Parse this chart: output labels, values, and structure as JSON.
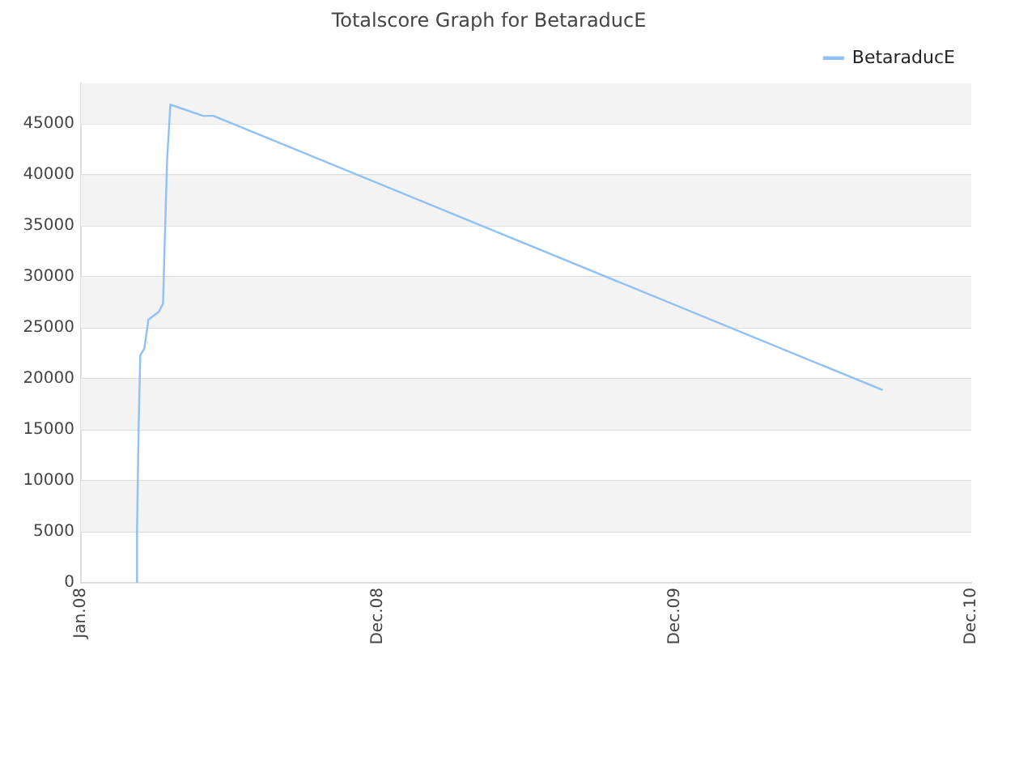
{
  "chart_data": {
    "type": "line",
    "title": "Totalscore Graph for BetaraducE",
    "x": [
      "2008-03-10",
      "2008-03-10",
      "2008-03-12",
      "2008-03-14",
      "2008-03-19",
      "2008-03-24",
      "2008-04-06",
      "2008-04-11",
      "2008-04-13",
      "2008-04-16",
      "2008-04-20",
      "2008-05-30",
      "2008-06-12",
      "2010-09-13"
    ],
    "series": [
      {
        "name": "BetaraducE",
        "color": "#90c0f4",
        "values": [
          0,
          5100,
          15600,
          22300,
          23000,
          25800,
          26600,
          27400,
          33300,
          41500,
          46900,
          45800,
          45800,
          18900
        ]
      }
    ],
    "xlim": [
      "2008-01-01",
      "2010-12-31"
    ],
    "xticks": [
      {
        "value": "2008-01-01",
        "label": "Jan.08"
      },
      {
        "value": "2008-12-31",
        "label": "Dec.08"
      },
      {
        "value": "2009-12-31",
        "label": "Dec.09"
      },
      {
        "value": "2010-12-31",
        "label": "Dec.10"
      }
    ],
    "ylim": [
      0,
      49000
    ],
    "yticks": [
      0,
      5000,
      10000,
      15000,
      20000,
      25000,
      30000,
      35000,
      40000,
      45000
    ],
    "grid": "y",
    "legend": "top right",
    "marker": "none",
    "line_style": "solid"
  }
}
